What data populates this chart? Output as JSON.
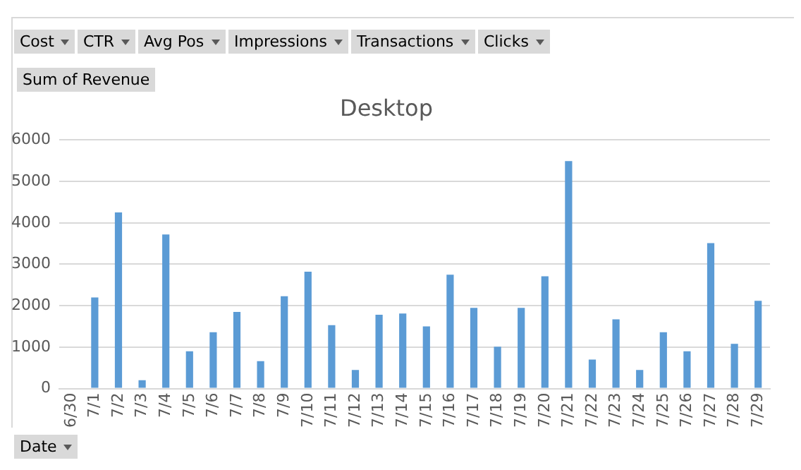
{
  "chart_data": {
    "type": "bar",
    "title": "Desktop",
    "categories": [
      "6/30",
      "7/1",
      "7/2",
      "7/3",
      "7/4",
      "7/5",
      "7/6",
      "7/7",
      "7/8",
      "7/9",
      "7/10",
      "7/11",
      "7/12",
      "7/13",
      "7/14",
      "7/15",
      "7/16",
      "7/17",
      "7/18",
      "7/19",
      "7/20",
      "7/21",
      "7/22",
      "7/23",
      "7/24",
      "7/25",
      "7/26",
      "7/27",
      "7/28",
      "7/29"
    ],
    "values": [
      null,
      2200,
      4250,
      200,
      3720,
      900,
      1360,
      1850,
      660,
      2230,
      2820,
      1530,
      450,
      1780,
      1810,
      1500,
      2750,
      1950,
      1010,
      1950,
      2710,
      5490,
      700,
      1670,
      450,
      1360,
      900,
      3510,
      1080,
      2120
    ],
    "color": "#5b9bd5",
    "ylim": [
      0,
      6000
    ],
    "yticks": [
      0,
      1000,
      2000,
      3000,
      4000,
      5000,
      6000
    ],
    "grid": "y",
    "legend": false,
    "annotations": [
      "Cost",
      "CTR",
      "Avg Pos",
      "Impressions",
      "Transactions",
      "Clicks",
      "Sum of Revenue",
      "Date"
    ]
  }
}
